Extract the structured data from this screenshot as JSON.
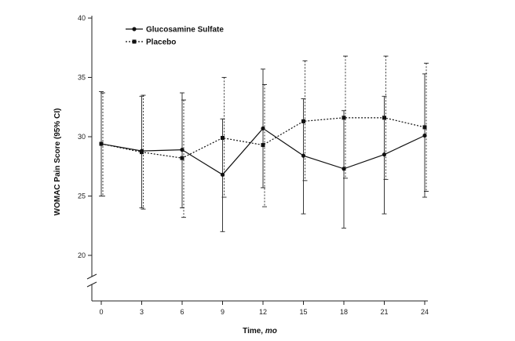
{
  "chart_data": {
    "type": "line",
    "title": "",
    "xlabel_main": "Time, ",
    "xlabel_italic": "mo",
    "ylabel": "WOMAC Pain Score (95% CI)",
    "x": [
      0,
      3,
      6,
      9,
      12,
      15,
      18,
      21,
      24
    ],
    "xticks": [
      "0",
      "3",
      "6",
      "9",
      "12",
      "15",
      "18",
      "21",
      "24"
    ],
    "yticks": [
      "20",
      "25",
      "30",
      "35",
      "40"
    ],
    "ylim": [
      20,
      40
    ],
    "axis_break": true,
    "grid": false,
    "legend_position": "top-left",
    "series": [
      {
        "name": "Glucosamine Sulfate",
        "marker": "circle",
        "line": "solid",
        "values": [
          29.4,
          28.8,
          28.9,
          26.8,
          30.7,
          28.4,
          27.3,
          28.5,
          30.1
        ],
        "ci_low": [
          25.0,
          24.0,
          24.0,
          22.0,
          25.7,
          23.5,
          22.3,
          23.5,
          24.9
        ],
        "ci_high": [
          33.8,
          33.4,
          33.7,
          31.5,
          35.7,
          33.2,
          32.2,
          33.4,
          35.3
        ]
      },
      {
        "name": "Placebo",
        "marker": "square",
        "line": "dotted",
        "values": [
          29.4,
          28.7,
          28.2,
          29.9,
          29.3,
          31.3,
          31.6,
          31.6,
          30.8
        ],
        "ci_low": [
          25.0,
          23.9,
          23.2,
          24.9,
          24.1,
          26.3,
          26.5,
          26.4,
          25.4
        ],
        "ci_high": [
          33.7,
          33.5,
          33.1,
          35.0,
          34.4,
          36.4,
          36.8,
          36.8,
          36.2
        ]
      }
    ]
  }
}
